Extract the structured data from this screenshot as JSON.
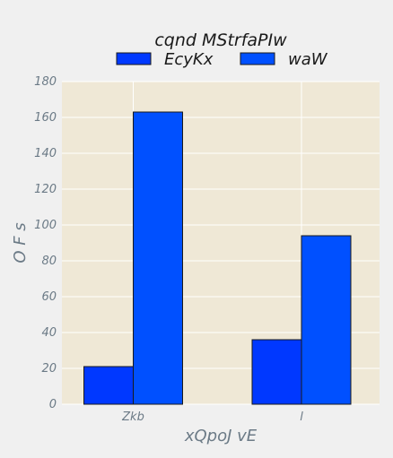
{
  "chart_data": {
    "type": "bar",
    "title": "",
    "legend": {
      "title": "cqnd MStrfaPIw",
      "placement": "top-center"
    },
    "xlabel": "xQpoJ vE",
    "ylabel": "O F s",
    "categories": [
      "Zkb",
      "l"
    ],
    "series": [
      {
        "name": "EcyKx",
        "values": [
          21,
          36
        ],
        "color": "#0038ff"
      },
      {
        "name": "waW",
        "values": [
          163,
          94
        ],
        "color": "#0050ff"
      }
    ],
    "ylim": [
      0,
      180
    ],
    "yticks": [
      0,
      20,
      40,
      60,
      80,
      100,
      120,
      140,
      160,
      180
    ],
    "grid": true,
    "colors": {
      "plot_background": "#efe8d6",
      "page_background": "#f0f0f0",
      "grid": "#ffffff",
      "text": "#6b7a86",
      "bar_edge": "#1a1a1a"
    }
  }
}
